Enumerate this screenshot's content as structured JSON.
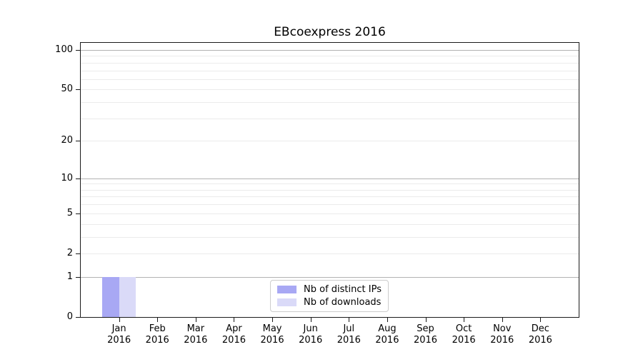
{
  "chart_data": {
    "type": "bar",
    "title": "EBcoexpress 2016",
    "categories": [
      {
        "label": "Jan",
        "sublabel": "2016"
      },
      {
        "label": "Feb",
        "sublabel": "2016"
      },
      {
        "label": "Mar",
        "sublabel": "2016"
      },
      {
        "label": "Apr",
        "sublabel": "2016"
      },
      {
        "label": "May",
        "sublabel": "2016"
      },
      {
        "label": "Jun",
        "sublabel": "2016"
      },
      {
        "label": "Jul",
        "sublabel": "2016"
      },
      {
        "label": "Aug",
        "sublabel": "2016"
      },
      {
        "label": "Sep",
        "sublabel": "2016"
      },
      {
        "label": "Oct",
        "sublabel": "2016"
      },
      {
        "label": "Nov",
        "sublabel": "2016"
      },
      {
        "label": "Dec",
        "sublabel": "2016"
      }
    ],
    "series": [
      {
        "name": "Nb of distinct IPs",
        "color": "#a8a8f4",
        "values": [
          1,
          0,
          0,
          0,
          0,
          0,
          0,
          0,
          0,
          0,
          0,
          0
        ]
      },
      {
        "name": "Nb of downloads",
        "color": "#dadaf8",
        "values": [
          1,
          0,
          0,
          0,
          0,
          0,
          0,
          0,
          0,
          0,
          0,
          0
        ]
      }
    ],
    "y_axis": {
      "scale": "log1p",
      "ylim": [
        0,
        114
      ],
      "tick_values": [
        0,
        1,
        2,
        5,
        10,
        20,
        50,
        100
      ],
      "tick_labels": [
        "0",
        "1",
        "2",
        "5",
        "10",
        "20",
        "50",
        "100"
      ],
      "major_gridline_values": [
        1,
        10,
        100
      ],
      "minor_gridline_values": [
        2,
        3,
        4,
        5,
        6,
        7,
        8,
        9,
        20,
        30,
        40,
        50,
        60,
        70,
        80,
        90
      ]
    },
    "legend": {
      "position": "lower center",
      "entries": [
        "Nb of distinct IPs",
        "Nb of downloads"
      ]
    },
    "grid": "on"
  }
}
